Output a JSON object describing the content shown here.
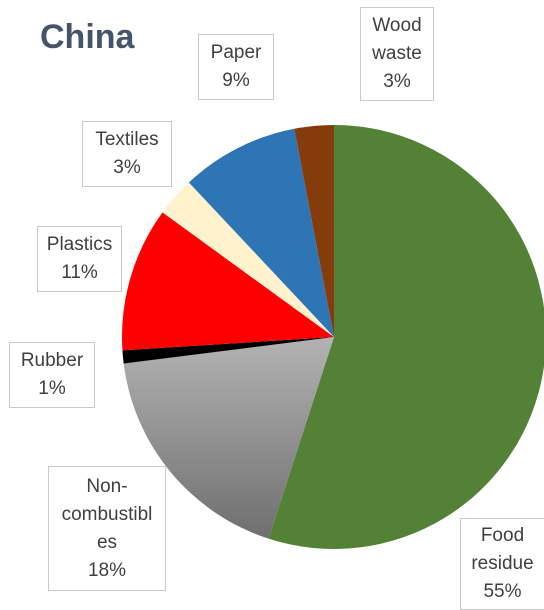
{
  "chart_data": {
    "type": "pie",
    "title": "China",
    "start_angle_deg": 0,
    "direction": "clockwise",
    "slices": [
      {
        "name": "Food residue",
        "name_display": "Food\nresidue",
        "value": 55,
        "label": "55%",
        "color": "#538135"
      },
      {
        "name": "Non-combustibles",
        "name_display": "Non-\ncombustibl\nes",
        "value": 18,
        "label": "18%",
        "color": "#9e9e9e"
      },
      {
        "name": "Rubber",
        "name_display": "Rubber",
        "value": 1,
        "label": "1%",
        "color": "#000000"
      },
      {
        "name": "Plastics",
        "name_display": "Plastics",
        "value": 11,
        "label": "11%",
        "color": "#ff0000"
      },
      {
        "name": "Textiles",
        "name_display": "Textiles",
        "value": 3,
        "label": "3%",
        "color": "#fff2cc"
      },
      {
        "name": "Paper",
        "name_display": "Paper",
        "value": 9,
        "label": "9%",
        "color": "#2e75b6"
      },
      {
        "name": "Wood waste",
        "name_display": "Wood\nwaste",
        "value": 3,
        "label": "3%",
        "color": "#843c0c"
      }
    ]
  }
}
